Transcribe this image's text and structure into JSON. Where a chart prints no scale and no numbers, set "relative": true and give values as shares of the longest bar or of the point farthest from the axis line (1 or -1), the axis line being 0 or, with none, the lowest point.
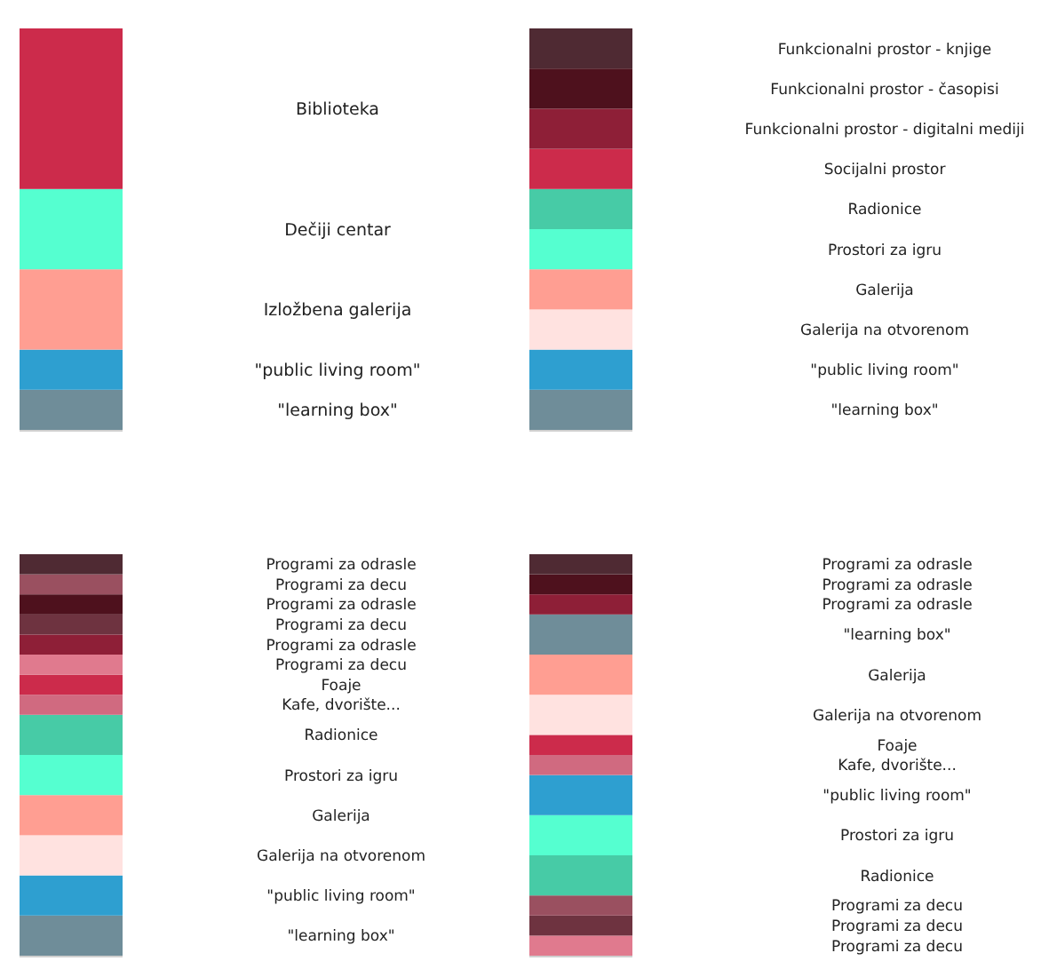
{
  "chart_data": [
    {
      "type": "bar",
      "stacked": true,
      "relative": true,
      "categories": [
        null
      ],
      "series": [
        {
          "name": "\"learning box\"",
          "color": "#6f8d99",
          "values": [
            0.1
          ]
        },
        {
          "name": "\"public living room\"",
          "color": "#2e9fd0",
          "values": [
            0.1
          ]
        },
        {
          "name": "Izložbena galerija",
          "color": "#ff9e92",
          "values": [
            0.2
          ]
        },
        {
          "name": "Dečiji centar",
          "color": "#55ffd0",
          "values": [
            0.2
          ]
        },
        {
          "name": "Biblioteka",
          "color": "#cc2b4b",
          "values": [
            0.4
          ]
        }
      ]
    },
    {
      "type": "bar",
      "stacked": true,
      "relative": true,
      "categories": [
        null
      ],
      "series": [
        {
          "name": "\"learning box\"",
          "color": "#6f8d99",
          "values": [
            0.1
          ]
        },
        {
          "name": "\"public living room\"",
          "color": "#2e9fd0",
          "values": [
            0.1
          ]
        },
        {
          "name": "Galerija na otvorenom",
          "color": "#ffe2e0",
          "values": [
            0.1
          ]
        },
        {
          "name": "Galerija",
          "color": "#ff9e92",
          "values": [
            0.1
          ]
        },
        {
          "name": "Prostori za igru",
          "color": "#55ffd0",
          "values": [
            0.1
          ]
        },
        {
          "name": "Radionice",
          "color": "#47cba6",
          "values": [
            0.1
          ]
        },
        {
          "name": "Socijalni prostor",
          "color": "#cc2b4b",
          "values": [
            0.1
          ]
        },
        {
          "name": "Funkcionalni prostor - digitalni mediji",
          "color": "#8e1f37",
          "values": [
            0.1
          ]
        },
        {
          "name": "Funkcionalni prostor - časopisi",
          "color": "#4e111d",
          "values": [
            0.1
          ]
        },
        {
          "name": "Funkcionalni prostor - knjige",
          "color": "#4f2a33",
          "values": [
            0.1
          ]
        }
      ]
    },
    {
      "type": "bar",
      "stacked": true,
      "relative": true,
      "categories": [
        null
      ],
      "series": [
        {
          "name": "\"learning box\"",
          "color": "#6f8d99",
          "values": [
            0.1
          ]
        },
        {
          "name": "\"public living room\"",
          "color": "#2e9fd0",
          "values": [
            0.1
          ]
        },
        {
          "name": "Galerija na otvorenom",
          "color": "#ffe2e0",
          "values": [
            0.1
          ]
        },
        {
          "name": "Galerija",
          "color": "#ff9e92",
          "values": [
            0.1
          ]
        },
        {
          "name": "Prostori za igru",
          "color": "#55ffd0",
          "values": [
            0.1
          ]
        },
        {
          "name": "Radionice",
          "color": "#47cba6",
          "values": [
            0.1
          ]
        },
        {
          "name": "Kafe, dvorište...",
          "color": "#d06a80",
          "values": [
            0.05
          ]
        },
        {
          "name": "Foaje",
          "color": "#cc2b4b",
          "values": [
            0.05
          ]
        },
        {
          "name": "Programi za decu",
          "color": "#e07a8e",
          "values": [
            0.05
          ]
        },
        {
          "name": "Programi za odrasle",
          "color": "#8e1f37",
          "values": [
            0.05
          ]
        },
        {
          "name": "Programi za decu",
          "color": "#6e3340",
          "values": [
            0.05
          ]
        },
        {
          "name": "Programi za odrasle",
          "color": "#4e111d",
          "values": [
            0.05
          ]
        },
        {
          "name": "Programi za decu",
          "color": "#9a5060",
          "values": [
            0.05
          ]
        },
        {
          "name": "Programi za odrasle",
          "color": "#4f2a33",
          "values": [
            0.05
          ]
        }
      ]
    },
    {
      "type": "bar",
      "stacked": true,
      "relative": true,
      "categories": [
        null
      ],
      "series": [
        {
          "name": "Programi za decu",
          "color": "#e07a8e",
          "values": [
            0.05
          ]
        },
        {
          "name": "Programi za decu",
          "color": "#6e3340",
          "values": [
            0.05
          ]
        },
        {
          "name": "Programi za decu",
          "color": "#9a5060",
          "values": [
            0.05
          ]
        },
        {
          "name": "Radionice",
          "color": "#47cba6",
          "values": [
            0.1
          ]
        },
        {
          "name": "Prostori za igru",
          "color": "#55ffd0",
          "values": [
            0.1
          ]
        },
        {
          "name": "\"public living room\"",
          "color": "#2e9fd0",
          "values": [
            0.1
          ]
        },
        {
          "name": "Kafe, dvorište...",
          "color": "#d06a80",
          "values": [
            0.05
          ]
        },
        {
          "name": "Foaje",
          "color": "#cc2b4b",
          "values": [
            0.05
          ]
        },
        {
          "name": "Galerija na otvorenom",
          "color": "#ffe2e0",
          "values": [
            0.1
          ]
        },
        {
          "name": "Galerija",
          "color": "#ff9e92",
          "values": [
            0.1
          ]
        },
        {
          "name": "\"learning box\"",
          "color": "#6f8d99",
          "values": [
            0.1
          ]
        },
        {
          "name": "Programi za odrasle",
          "color": "#8e1f37",
          "values": [
            0.05
          ]
        },
        {
          "name": "Programi za odrasle",
          "color": "#4e111d",
          "values": [
            0.05
          ]
        },
        {
          "name": "Programi za odrasle",
          "color": "#4f2a33",
          "values": [
            0.05
          ]
        }
      ]
    }
  ]
}
